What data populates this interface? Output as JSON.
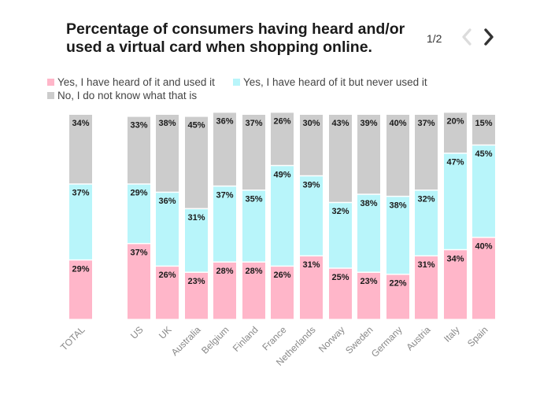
{
  "header": {
    "title": "Percentage of consumers having heard and/or used a virtual card when shopping online.",
    "pager": "1/2"
  },
  "nav": {
    "prev_icon": "chevron-left-icon",
    "next_icon": "chevron-right-icon"
  },
  "legend": [
    {
      "label": "Yes, I have heard of it and used it",
      "color": "#ffb6c9"
    },
    {
      "label": "Yes, I have heard of it but never used it",
      "color": "#b8f5fa"
    },
    {
      "label": "No, I do not know what that is",
      "color": "#cccccc"
    }
  ],
  "chart_data": {
    "type": "bar",
    "stacked": true,
    "ylim": [
      0,
      100
    ],
    "value_suffix": "%",
    "categories": [
      "TOTAL",
      "US",
      "UK",
      "Australia",
      "Belgium",
      "Finland",
      "France",
      "Netherlands",
      "Norway",
      "Sweden",
      "Germany",
      "Austria",
      "Italy",
      "Spain"
    ],
    "series": [
      {
        "name": "Yes, I have heard of it and used it",
        "color": "#ffb6c9",
        "values": [
          29,
          37,
          26,
          23,
          28,
          28,
          26,
          31,
          25,
          23,
          22,
          31,
          34,
          40
        ]
      },
      {
        "name": "Yes, I have heard of it but never used it",
        "color": "#b8f5fa",
        "values": [
          37,
          29,
          36,
          31,
          37,
          35,
          49,
          39,
          32,
          38,
          38,
          32,
          47,
          45
        ]
      },
      {
        "name": "No, I do not know what that is",
        "color": "#cccccc",
        "values": [
          34,
          33,
          38,
          45,
          36,
          37,
          26,
          30,
          43,
          39,
          40,
          37,
          20,
          15
        ]
      }
    ]
  }
}
